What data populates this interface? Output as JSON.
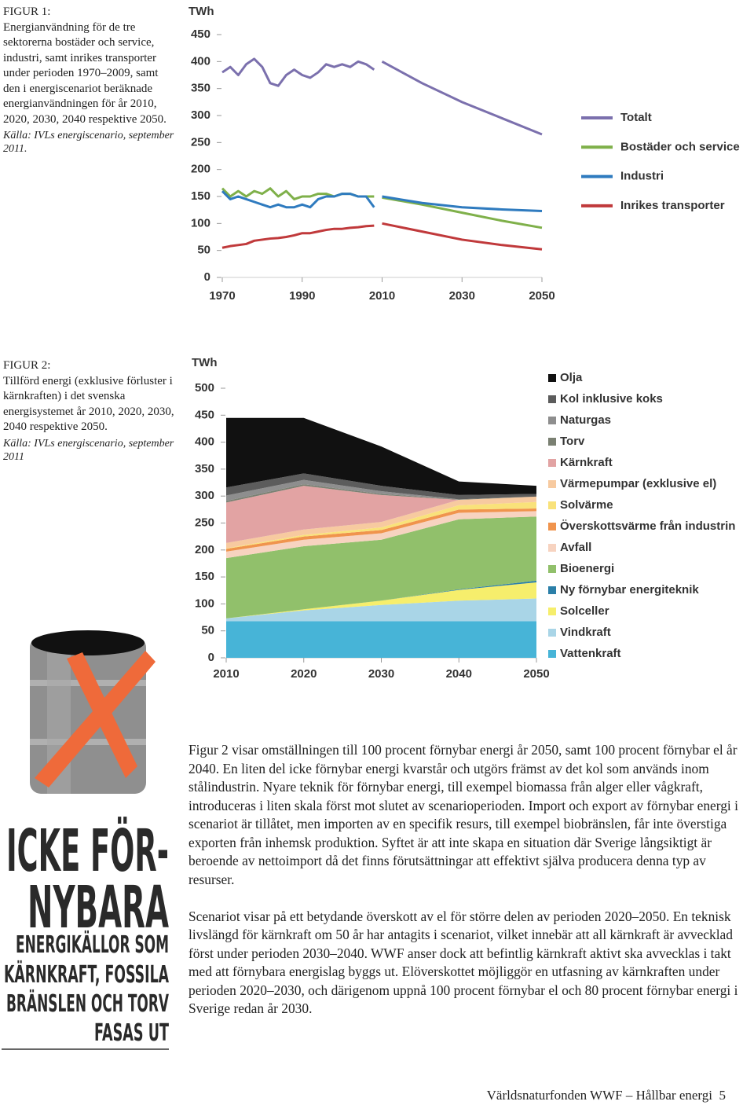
{
  "chart_data": [
    {
      "type": "line",
      "figure_label": "FIGUR 1:",
      "caption": "Energianvändning för de tre sektorerna bostäder och service, industri, samt inrikes transporter under perioden 1970–2009, samt den i energiscenariot beräknade energianvändningen för år 2010, 2020, 2030, 2040 respektive 2050.",
      "source": "Källa: IVLs energiscenario, september 2011.",
      "y_label": "TWh",
      "x": [
        1970,
        1972,
        1974,
        1976,
        1978,
        1980,
        1982,
        1984,
        1986,
        1988,
        1990,
        1992,
        1994,
        1996,
        1998,
        2000,
        2002,
        2004,
        2006,
        2008,
        2009,
        2010,
        2020,
        2030,
        2040,
        2050
      ],
      "series": [
        {
          "name": "Totalt",
          "color": "#7b70ad",
          "values": [
            380,
            390,
            375,
            395,
            405,
            390,
            360,
            355,
            375,
            385,
            375,
            370,
            380,
            395,
            390,
            395,
            390,
            400,
            395,
            385,
            null,
            400,
            360,
            325,
            295,
            265
          ]
        },
        {
          "name": "Bostäder och service",
          "color": "#7fb04a",
          "values": [
            165,
            150,
            160,
            150,
            160,
            155,
            165,
            150,
            160,
            145,
            150,
            150,
            155,
            155,
            150,
            155,
            155,
            150,
            150,
            150,
            null,
            148,
            135,
            120,
            105,
            92
          ]
        },
        {
          "name": "Industri",
          "color": "#2f7bbf",
          "values": [
            160,
            145,
            150,
            145,
            140,
            135,
            130,
            135,
            130,
            130,
            135,
            130,
            145,
            150,
            150,
            155,
            155,
            150,
            150,
            130,
            null,
            150,
            138,
            130,
            126,
            123
          ]
        },
        {
          "name": "Inrikes transporter",
          "color": "#c0393b",
          "values": [
            55,
            58,
            60,
            62,
            68,
            70,
            72,
            73,
            75,
            78,
            82,
            82,
            85,
            88,
            90,
            90,
            92,
            93,
            95,
            96,
            null,
            100,
            85,
            70,
            60,
            52
          ]
        }
      ],
      "xlim": [
        1970,
        2050
      ],
      "xticks": [
        1970,
        1990,
        2010,
        2030,
        2050
      ],
      "ylim": [
        0,
        450
      ],
      "yticks": [
        0,
        50,
        100,
        150,
        200,
        250,
        300,
        350,
        400,
        450
      ],
      "grid": false,
      "legend": "right"
    },
    {
      "type": "area",
      "figure_label": "FIGUR 2:",
      "caption": "Tillförd energi (exklusive förluster i kärnkraften) i det svenska energisystemet år 2010, 2020, 2030, 2040 respektive 2050.",
      "source": "Källa: IVLs energiscenario, september 2011",
      "y_label": "TWh",
      "x": [
        2010,
        2020,
        2030,
        2040,
        2050
      ],
      "series": [
        {
          "name": "Olja",
          "color": "#111111",
          "values": [
            129,
            103,
            73,
            25,
            15
          ]
        },
        {
          "name": "Kol inklusive koks",
          "color": "#5c5c5c",
          "values": [
            15,
            12,
            10,
            8,
            5
          ]
        },
        {
          "name": "Naturgas",
          "color": "#8e8e8e",
          "values": [
            10,
            8,
            5,
            0,
            0
          ]
        },
        {
          "name": "Torv",
          "color": "#7a8072",
          "values": [
            3,
            3,
            2,
            1,
            0
          ]
        },
        {
          "name": "Kärnkraft",
          "color": "#e2a3a3",
          "values": [
            75,
            81,
            50,
            0,
            0
          ]
        },
        {
          "name": "Värmepumpar (exklusive el)",
          "color": "#f7caa0",
          "values": [
            10,
            10,
            10,
            10,
            10
          ]
        },
        {
          "name": "Solvärme",
          "color": "#f9e27a",
          "values": [
            1,
            3,
            5,
            8,
            12
          ]
        },
        {
          "name": "Överskottsvärme från industrin",
          "color": "#f0944d",
          "values": [
            5,
            6,
            6,
            6,
            5
          ]
        },
        {
          "name": "Avfall",
          "color": "#f7d3c0",
          "values": [
            12,
            12,
            12,
            12,
            10
          ]
        },
        {
          "name": "Bioenergi",
          "color": "#91c06b",
          "values": [
            112,
            117,
            113,
            130,
            119
          ]
        },
        {
          "name": "Ny förnybar energiteknik",
          "color": "#2b7fa8",
          "values": [
            0,
            0,
            0,
            1,
            3
          ]
        },
        {
          "name": "Solceller",
          "color": "#f6ee6c",
          "values": [
            0,
            2,
            8,
            20,
            30
          ]
        },
        {
          "name": "Vindkraft",
          "color": "#a9d5e7",
          "values": [
            5,
            20,
            30,
            38,
            42
          ]
        },
        {
          "name": "Vattenkraft",
          "color": "#47b4d7",
          "values": [
            68,
            68,
            68,
            68,
            68
          ]
        }
      ],
      "xlim": [
        2010,
        2050
      ],
      "xticks": [
        2010,
        2020,
        2030,
        2040,
        2050
      ],
      "ylim": [
        0,
        500
      ],
      "yticks": [
        0,
        50,
        100,
        150,
        200,
        250,
        300,
        350,
        400,
        450,
        500
      ],
      "grid": false,
      "legend": "right"
    }
  ],
  "sidebar": {
    "heading": [
      "ICKE FÖR-",
      "NYBARA"
    ],
    "subheading": [
      "ENERGIKÄLLOR SOM",
      "KÄRNKRAFT, FOSSILA",
      "BRÄNSLEN OCH TORV",
      "FASAS UT"
    ]
  },
  "body": [
    "Figur 2 visar omställningen till 100 procent förnybar energi år 2050, samt 100 procent förnybar el år 2040. En liten del icke förnybar energi kvarstår och utgörs främst av det kol som används inom stålindustrin. Nyare teknik för förnybar energi, till exempel biomassa från alger eller vågkraft, introduceras i liten skala först mot slutet av scenarioperioden. Import och export av förnybar energi i scenariot är tillåtet, men importen av en specifik resurs, till exempel biobränslen, får inte överstiga exporten från inhemsk produktion. Syftet är att inte skapa en situation där Sverige långsiktigt är beroende av nettoimport då det finns förutsättningar att effektivt själva producera denna typ av resurser.",
    "Scenariot visar på ett betydande överskott av el för större delen av perioden 2020–2050. En teknisk livslängd för kärnkraft om 50 år har antagits i scenariot, vilket innebär att all kärnkraft är avvecklad först under perioden 2030–2040. WWF anser dock att befintlig kärnkraft aktivt ska avvecklas i takt med att förnybara energislag byggs ut. Elöverskottet möjliggör en utfasning av kärnkraften under perioden 2020–2030, och därigenom uppnå 100 procent förnybar el och 80 procent förnybar energi i Sverige redan år 2030."
  ],
  "footer": {
    "text": "Världsnaturfonden WWF – Hållbar energi",
    "page": "5"
  }
}
